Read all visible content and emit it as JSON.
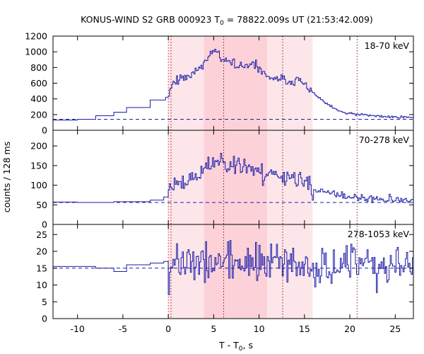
{
  "chart_data": {
    "type": "line",
    "title": {
      "prefix": "KONUS-WIND S2 GRB 000923 T",
      "sub": "0",
      "suffix": " = 78822.009s UT (21:53:42.009)"
    },
    "xlabel": {
      "prefix": "T - T",
      "sub": "0",
      "suffix": ", s"
    },
    "ylabel": "counts / 128 ms",
    "xlim": [
      -12.7,
      27
    ],
    "x_ticks": [
      -10,
      -5,
      0,
      5,
      10,
      15,
      20,
      25
    ],
    "x_tick_labels": [
      "-10",
      "-5",
      "0",
      "5",
      "10",
      "15",
      "20",
      "25"
    ],
    "colors": {
      "line": "#1c1ca8",
      "background_dash": "#1c1ca8",
      "shade_light": "#fde6e9",
      "shade_dark": "#fcd2d8",
      "vline": "#8b1a1a",
      "vline_red": "#c03030"
    },
    "shaded_regions": [
      {
        "x0": 0.0,
        "x1": 3.9,
        "level": "light"
      },
      {
        "x0": 3.9,
        "x1": 10.9,
        "level": "dark"
      },
      {
        "x0": 10.9,
        "x1": 15.9,
        "level": "light"
      }
    ],
    "vertical_lines": [
      {
        "x": 0.0,
        "style": "dotted",
        "color": "red"
      },
      {
        "x": 0.3,
        "style": "dotted",
        "color": "dark"
      },
      {
        "x": 6.1,
        "style": "dotted",
        "color": "dark"
      },
      {
        "x": 12.6,
        "style": "dotted",
        "color": "dark"
      },
      {
        "x": 20.8,
        "style": "dotted",
        "color": "dark"
      }
    ],
    "panels": [
      {
        "label": "18-70 keV",
        "ylim": [
          0,
          1200
        ],
        "y_ticks": [
          0,
          200,
          400,
          600,
          800,
          1000,
          1200
        ],
        "y_tick_labels": [
          "0",
          "200",
          "400",
          "600",
          "800",
          "1000",
          "1200"
        ],
        "background": 140,
        "pre_steps": [
          [
            -12.7,
            130
          ],
          [
            -10.0,
            140
          ],
          [
            -8.0,
            185
          ],
          [
            -6.0,
            230
          ],
          [
            -4.6,
            290
          ],
          [
            -2.0,
            385
          ],
          [
            -0.3,
            420
          ]
        ],
        "trend": [
          [
            0.0,
            450
          ],
          [
            0.5,
            620
          ],
          [
            1.5,
            660
          ],
          [
            2.5,
            720
          ],
          [
            3.5,
            800
          ],
          [
            4.3,
            920
          ],
          [
            5.0,
            1030
          ],
          [
            5.6,
            970
          ],
          [
            6.5,
            880
          ],
          [
            7.5,
            810
          ],
          [
            8.5,
            800
          ],
          [
            9.5,
            850
          ],
          [
            10.5,
            730
          ],
          [
            11.5,
            640
          ],
          [
            12.5,
            650
          ],
          [
            13.5,
            620
          ],
          [
            14.3,
            650
          ],
          [
            15.5,
            530
          ],
          [
            16.5,
            420
          ],
          [
            17.5,
            330
          ],
          [
            18.5,
            260
          ],
          [
            19.5,
            220
          ],
          [
            20.5,
            205
          ],
          [
            21.5,
            195
          ],
          [
            23.0,
            180
          ],
          [
            25.0,
            170
          ],
          [
            27.0,
            165
          ]
        ],
        "noise_amp": 45,
        "noise_tail": 12,
        "seed": 11
      },
      {
        "label": "70-278 keV",
        "ylim": [
          0,
          240
        ],
        "y_ticks": [
          0,
          50,
          100,
          150,
          200
        ],
        "y_tick_labels": [
          "0",
          "50",
          "100",
          "150",
          "200"
        ],
        "background": 56,
        "pre_steps": [
          [
            -12.7,
            57
          ],
          [
            -10.0,
            56
          ],
          [
            -6.0,
            58
          ],
          [
            -4.6,
            58
          ],
          [
            -2.0,
            62
          ],
          [
            -0.5,
            70
          ]
        ],
        "trend": [
          [
            0.0,
            95
          ],
          [
            1.0,
            105
          ],
          [
            2.0,
            110
          ],
          [
            3.0,
            120
          ],
          [
            4.0,
            140
          ],
          [
            5.0,
            165
          ],
          [
            6.0,
            160
          ],
          [
            7.0,
            155
          ],
          [
            8.0,
            150
          ],
          [
            9.0,
            145
          ],
          [
            10.0,
            135
          ],
          [
            11.0,
            125
          ],
          [
            12.0,
            130
          ],
          [
            13.0,
            125
          ],
          [
            14.0,
            120
          ],
          [
            15.0,
            100
          ],
          [
            16.0,
            90
          ],
          [
            17.0,
            82
          ],
          [
            18.0,
            78
          ],
          [
            20.0,
            70
          ],
          [
            22.0,
            65
          ],
          [
            24.0,
            62
          ],
          [
            27.0,
            60
          ]
        ],
        "noise_amp": 18,
        "noise_tail": 7,
        "seed": 23
      },
      {
        "label": "278-1053 keV",
        "ylim": [
          0,
          28
        ],
        "y_ticks": [
          0,
          5,
          10,
          15,
          20,
          25
        ],
        "y_tick_labels": [
          "0",
          "5",
          "10",
          "15",
          "20",
          "25"
        ],
        "background": 15,
        "pre_steps": [
          [
            -12.7,
            15.5
          ],
          [
            -10.0,
            15.5
          ],
          [
            -8.0,
            15
          ],
          [
            -6.0,
            14
          ],
          [
            -4.6,
            16
          ],
          [
            -2.0,
            16.5
          ],
          [
            -0.5,
            17
          ]
        ],
        "trend": [
          [
            0.0,
            16
          ],
          [
            3.0,
            16.5
          ],
          [
            6.0,
            17
          ],
          [
            10.0,
            16.5
          ],
          [
            14.0,
            16
          ],
          [
            18.0,
            15.5
          ],
          [
            22.0,
            15.5
          ],
          [
            27.0,
            15.5
          ]
        ],
        "noise_amp": 4.5,
        "noise_tail": 4.0,
        "seed": 37
      }
    ]
  }
}
